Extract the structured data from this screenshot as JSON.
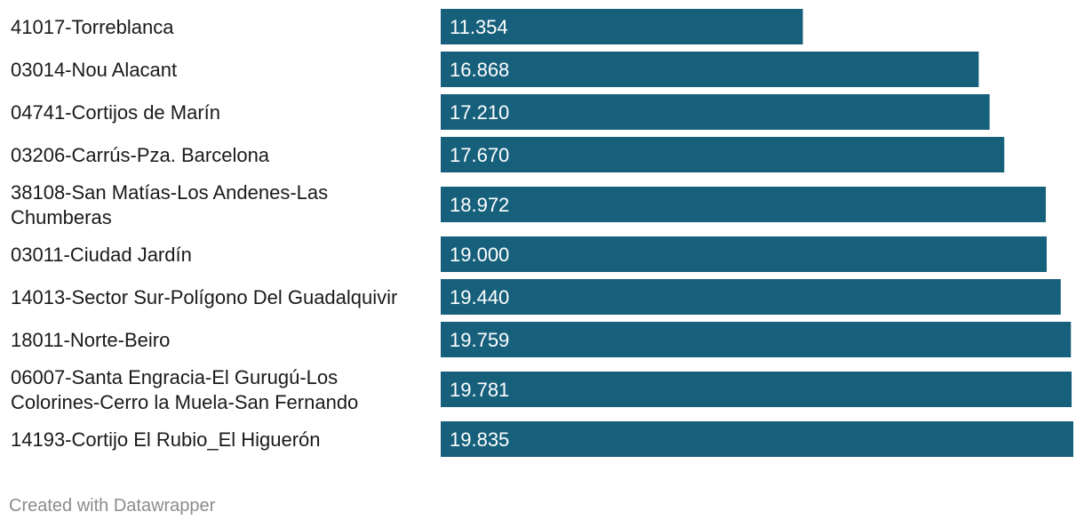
{
  "chart_data": {
    "type": "bar",
    "orientation": "horizontal",
    "categories": [
      "41017-Torreblanca",
      "03014-Nou Alacant",
      "04741-Cortijos de Marín",
      "03206-Carrús-Pza. Barcelona",
      "38108-San Matías-Los Andenes-Las Chumberas",
      "03011-Ciudad Jardín",
      "14013-Sector Sur-Polígono Del Guadalquivir",
      "18011-Norte-Beiro",
      "06007-Santa Engracia-El Gurugú-Los Colorines-Cerro la Muela-San Fernando",
      "14193-Cortijo El Rubio_El Higuerón"
    ],
    "values": [
      11354,
      16868,
      17210,
      17670,
      18972,
      19000,
      19440,
      19759,
      19781,
      19835
    ],
    "value_labels": [
      "11.354",
      "16.868",
      "17.210",
      "17.670",
      "18.972",
      "19.000",
      "19.440",
      "19.759",
      "19.781",
      "19.835"
    ],
    "bar_color": "#17607c",
    "xlim": [
      0,
      19835
    ],
    "grid": false,
    "legend": "none",
    "title": "",
    "xlabel": "",
    "ylabel": ""
  },
  "footer": {
    "credit": "Created with Datawrapper"
  }
}
